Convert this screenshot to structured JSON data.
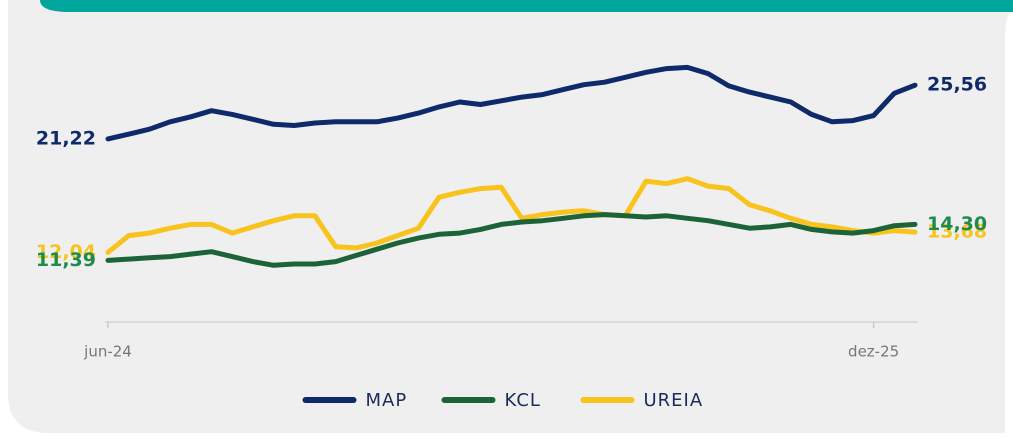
{
  "chart_data": {
    "type": "line",
    "categories": [
      "jun-24",
      null,
      null,
      null,
      null,
      null,
      null,
      null,
      null,
      null,
      null,
      null,
      null,
      null,
      null,
      null,
      null,
      null,
      null,
      null,
      null,
      null,
      null,
      null,
      null,
      null,
      null,
      null,
      null,
      null,
      null,
      null,
      null,
      null,
      null,
      null,
      null,
      "dez-25",
      null,
      null
    ],
    "series": [
      {
        "name": "MAP",
        "color": "#0e2a6a",
        "values": [
          21.22,
          21.6,
          22.0,
          22.6,
          23.0,
          23.5,
          23.2,
          22.8,
          22.4,
          22.3,
          22.5,
          22.6,
          22.6,
          22.6,
          22.9,
          23.3,
          23.8,
          24.2,
          24.0,
          24.3,
          24.6,
          24.8,
          25.2,
          25.6,
          25.8,
          26.2,
          26.6,
          26.9,
          27.0,
          26.5,
          25.5,
          25.0,
          24.6,
          24.2,
          23.2,
          22.6,
          22.7,
          23.1,
          24.9,
          25.56
        ],
        "value_labels": [
          "21,22",
          null,
          null,
          null,
          null,
          null,
          null,
          null,
          null,
          null,
          null,
          null,
          null,
          null,
          null,
          null,
          null,
          null,
          null,
          null,
          null,
          null,
          null,
          null,
          null,
          null,
          null,
          null,
          null,
          null,
          null,
          null,
          null,
          null,
          null,
          null,
          null,
          null,
          null,
          "25,56"
        ]
      },
      {
        "name": "KCL",
        "color": "#1d6338",
        "values": [
          11.39,
          11.5,
          11.6,
          11.7,
          11.9,
          12.1,
          11.7,
          11.3,
          11.0,
          11.1,
          11.1,
          11.3,
          11.8,
          12.3,
          12.8,
          13.2,
          13.5,
          13.6,
          13.9,
          14.3,
          14.5,
          14.6,
          14.8,
          15.0,
          15.1,
          15.0,
          14.9,
          15.0,
          14.8,
          14.6,
          14.3,
          14.0,
          14.1,
          14.3,
          13.9,
          13.7,
          13.6,
          13.8,
          14.2,
          14.3
        ],
        "value_labels": [
          "11,39",
          null,
          null,
          null,
          null,
          null,
          null,
          null,
          null,
          null,
          null,
          null,
          null,
          null,
          null,
          null,
          null,
          null,
          null,
          null,
          null,
          null,
          null,
          null,
          null,
          null,
          null,
          null,
          null,
          null,
          null,
          null,
          null,
          null,
          null,
          null,
          null,
          null,
          null,
          "14,30"
        ]
      },
      {
        "name": "UREIA",
        "color": "#f8c31c",
        "values": [
          12.04,
          13.4,
          13.6,
          14.0,
          14.3,
          14.3,
          13.6,
          14.1,
          14.6,
          15.0,
          15.0,
          12.5,
          12.4,
          12.8,
          13.4,
          14.0,
          16.5,
          16.9,
          17.2,
          17.3,
          14.8,
          15.1,
          15.3,
          15.4,
          15.1,
          15.0,
          17.8,
          17.6,
          18.0,
          17.4,
          17.2,
          15.9,
          15.4,
          14.8,
          14.3,
          14.1,
          13.8,
          13.6,
          13.8,
          13.68
        ],
        "value_labels": [
          "12,04",
          null,
          null,
          null,
          null,
          null,
          null,
          null,
          null,
          null,
          null,
          null,
          null,
          null,
          null,
          null,
          null,
          null,
          null,
          null,
          null,
          null,
          null,
          null,
          null,
          null,
          null,
          null,
          null,
          null,
          null,
          null,
          null,
          null,
          null,
          null,
          null,
          null,
          null,
          "13,68"
        ]
      }
    ],
    "ylim": [
      9,
      28
    ]
  }
}
